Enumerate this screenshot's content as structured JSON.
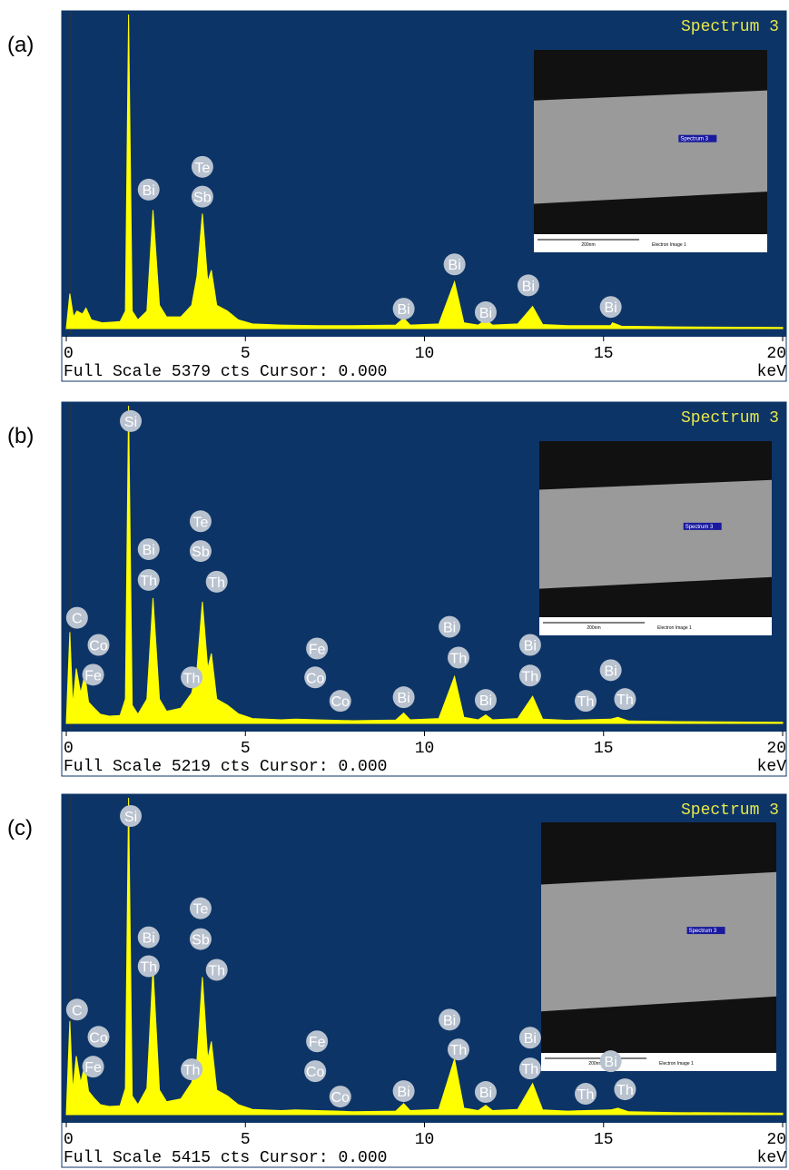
{
  "chart_data": [
    {
      "type": "area",
      "panel_label": "(a)",
      "title": "Spectrum 3",
      "footer": "Full Scale 5379 cts Cursor: 0.000",
      "x_label": "keV",
      "color": "#ffff00",
      "xlim": [
        0,
        20
      ],
      "xticks": [
        0,
        5,
        10,
        15,
        20
      ],
      "ylim": [
        0,
        5379
      ],
      "x": [
        0,
        0.1,
        0.2,
        0.3,
        0.45,
        0.55,
        0.7,
        1.0,
        1.5,
        1.65,
        1.74,
        1.84,
        2.0,
        2.25,
        2.42,
        2.6,
        2.8,
        3.2,
        3.5,
        3.65,
        3.8,
        3.95,
        4.05,
        4.2,
        4.5,
        4.8,
        5.2,
        6,
        7,
        8,
        9.2,
        9.42,
        9.6,
        10.4,
        10.84,
        11.1,
        11.5,
        11.71,
        11.9,
        12.6,
        13.02,
        13.3,
        14,
        15.2,
        15.25,
        15.5,
        17,
        20
      ],
      "values": [
        0,
        600,
        200,
        300,
        250,
        350,
        150,
        100,
        120,
        300,
        5379,
        300,
        150,
        300,
        2030,
        400,
        200,
        200,
        400,
        900,
        1970,
        800,
        1000,
        400,
        300,
        150,
        80,
        60,
        50,
        50,
        60,
        180,
        60,
        80,
        800,
        100,
        60,
        150,
        60,
        80,
        380,
        70,
        50,
        50,
        100,
        40,
        30,
        20
      ],
      "annotations": [
        {
          "label": "Bi",
          "x": 2.3,
          "y": 2380
        },
        {
          "label": "Te",
          "x": 3.8,
          "y": 2770
        },
        {
          "label": "Sb",
          "x": 3.8,
          "y": 2260
        },
        {
          "label": "Bi",
          "x": 9.42,
          "y": 340
        },
        {
          "label": "Bi",
          "x": 10.84,
          "y": 1100
        },
        {
          "label": "Bi",
          "x": 11.71,
          "y": 280
        },
        {
          "label": "Bi",
          "x": 12.9,
          "y": 740
        },
        {
          "label": "Bi",
          "x": 15.2,
          "y": 370
        }
      ],
      "inset_labels": {
        "marker": "Spectrum 3",
        "scale": "200nm",
        "caption": "Electron Image 1"
      }
    },
    {
      "type": "area",
      "panel_label": "(b)",
      "title": "Spectrum 3",
      "footer": "Full Scale 5219 cts Cursor: 0.000",
      "x_label": "keV",
      "color": "#ffff00",
      "xlim": [
        0,
        20
      ],
      "xticks": [
        0,
        5,
        10,
        15,
        20
      ],
      "ylim": [
        0,
        5219
      ],
      "x": [
        0,
        0.1,
        0.18,
        0.28,
        0.4,
        0.52,
        0.62,
        0.78,
        0.95,
        1.2,
        1.5,
        1.65,
        1.74,
        1.84,
        2.0,
        2.25,
        2.42,
        2.6,
        2.8,
        3.2,
        3.5,
        3.65,
        3.8,
        3.95,
        4.05,
        4.2,
        4.5,
        4.8,
        5.2,
        6,
        6.4,
        7.0,
        7.6,
        8,
        9.2,
        9.42,
        9.6,
        10.4,
        10.84,
        11.1,
        11.5,
        11.71,
        11.9,
        12.6,
        13.02,
        13.3,
        14,
        14.5,
        15.2,
        15.4,
        15.7,
        17,
        20
      ],
      "values": [
        0,
        1500,
        300,
        900,
        500,
        800,
        350,
        250,
        150,
        120,
        130,
        400,
        5219,
        300,
        150,
        400,
        2060,
        400,
        200,
        250,
        500,
        900,
        2000,
        900,
        1150,
        400,
        300,
        160,
        80,
        60,
        70,
        60,
        50,
        45,
        55,
        170,
        60,
        80,
        770,
        100,
        60,
        140,
        60,
        80,
        445,
        70,
        50,
        60,
        70,
        100,
        40,
        30,
        20
      ],
      "annotations": [
        {
          "label": "Si",
          "x": 1.8,
          "y": 4967
        },
        {
          "label": "C",
          "x": 0.3,
          "y": 1735
        },
        {
          "label": "Co",
          "x": 0.9,
          "y": 1290
        },
        {
          "label": "Fe",
          "x": 0.75,
          "y": 800
        },
        {
          "label": "Bi",
          "x": 2.3,
          "y": 2862
        },
        {
          "label": "Th",
          "x": 2.3,
          "y": 2357
        },
        {
          "label": "Te",
          "x": 3.75,
          "y": 3321
        },
        {
          "label": "Sb",
          "x": 3.75,
          "y": 2832
        },
        {
          "label": "Th",
          "x": 4.2,
          "y": 2328
        },
        {
          "label": "Th",
          "x": 3.5,
          "y": 756
        },
        {
          "label": "Fe",
          "x": 7.0,
          "y": 1230
        },
        {
          "label": "Co",
          "x": 6.95,
          "y": 756
        },
        {
          "label": "Co",
          "x": 7.65,
          "y": 370
        },
        {
          "label": "Bi",
          "x": 9.42,
          "y": 430
        },
        {
          "label": "Bi",
          "x": 10.7,
          "y": 1587
        },
        {
          "label": "Th",
          "x": 10.95,
          "y": 1082
        },
        {
          "label": "Bi",
          "x": 11.71,
          "y": 385
        },
        {
          "label": "Bi",
          "x": 12.95,
          "y": 1290
        },
        {
          "label": "Th",
          "x": 12.95,
          "y": 786
        },
        {
          "label": "Th",
          "x": 14.5,
          "y": 370
        },
        {
          "label": "Bi",
          "x": 15.2,
          "y": 875
        },
        {
          "label": "Th",
          "x": 15.6,
          "y": 400
        }
      ],
      "inset_labels": {
        "marker": "Spectrum 3",
        "scale": "200nm",
        "caption": "Electron Image 1"
      }
    },
    {
      "type": "area",
      "panel_label": "(c)",
      "title": "Spectrum 3",
      "footer": "Full Scale 5415 cts Cursor: 0.000",
      "x_label": "keV",
      "color": "#ffff00",
      "xlim": [
        0,
        20
      ],
      "xticks": [
        0,
        5,
        10,
        15,
        20
      ],
      "ylim": [
        0,
        5415
      ],
      "x": [
        0,
        0.1,
        0.18,
        0.28,
        0.4,
        0.52,
        0.62,
        0.78,
        0.95,
        1.2,
        1.5,
        1.65,
        1.74,
        1.84,
        2.0,
        2.25,
        2.42,
        2.6,
        2.8,
        3.2,
        3.5,
        3.65,
        3.8,
        3.95,
        4.05,
        4.2,
        4.5,
        4.8,
        5.2,
        6,
        6.4,
        7.0,
        7.6,
        8,
        9.2,
        9.42,
        9.6,
        10.4,
        10.84,
        11.1,
        11.5,
        11.71,
        11.9,
        12.6,
        13.02,
        13.3,
        14,
        14.5,
        15.2,
        15.4,
        15.7,
        17,
        20
      ],
      "values": [
        0,
        1600,
        400,
        1000,
        550,
        850,
        400,
        280,
        170,
        140,
        150,
        450,
        5415,
        320,
        170,
        450,
        2500,
        420,
        220,
        270,
        550,
        950,
        2350,
        950,
        1250,
        420,
        320,
        170,
        90,
        70,
        80,
        70,
        60,
        50,
        60,
        190,
        70,
        90,
        950,
        110,
        70,
        160,
        70,
        90,
        530,
        80,
        60,
        70,
        80,
        110,
        50,
        35,
        25
      ],
      "annotations": [
        {
          "label": "Si",
          "x": 1.8,
          "y": 5105
        },
        {
          "label": "C",
          "x": 0.3,
          "y": 1795
        },
        {
          "label": "Co",
          "x": 0.9,
          "y": 1330
        },
        {
          "label": "Fe",
          "x": 0.75,
          "y": 820
        },
        {
          "label": "Bi",
          "x": 2.3,
          "y": 3032
        },
        {
          "label": "Th",
          "x": 2.3,
          "y": 2537
        },
        {
          "label": "Te",
          "x": 3.75,
          "y": 3527
        },
        {
          "label": "Sb",
          "x": 3.75,
          "y": 3001
        },
        {
          "label": "Th",
          "x": 4.2,
          "y": 2475
        },
        {
          "label": "Th",
          "x": 3.5,
          "y": 774
        },
        {
          "label": "Fe",
          "x": 7.0,
          "y": 1253
        },
        {
          "label": "Co",
          "x": 6.95,
          "y": 743
        },
        {
          "label": "Co",
          "x": 7.65,
          "y": 309
        },
        {
          "label": "Bi",
          "x": 9.42,
          "y": 402
        },
        {
          "label": "Bi",
          "x": 10.7,
          "y": 1624
        },
        {
          "label": "Th",
          "x": 10.95,
          "y": 1114
        },
        {
          "label": "Bi",
          "x": 11.71,
          "y": 387
        },
        {
          "label": "Bi",
          "x": 12.95,
          "y": 1315
        },
        {
          "label": "Th",
          "x": 12.95,
          "y": 789
        },
        {
          "label": "Th",
          "x": 14.5,
          "y": 356
        },
        {
          "label": "Bi",
          "x": 15.2,
          "y": 913
        },
        {
          "label": "Th",
          "x": 15.6,
          "y": 433
        }
      ],
      "inset_labels": {
        "marker": "Spectrum 3",
        "scale": "200nm",
        "caption": "Electron Image 1"
      }
    }
  ]
}
